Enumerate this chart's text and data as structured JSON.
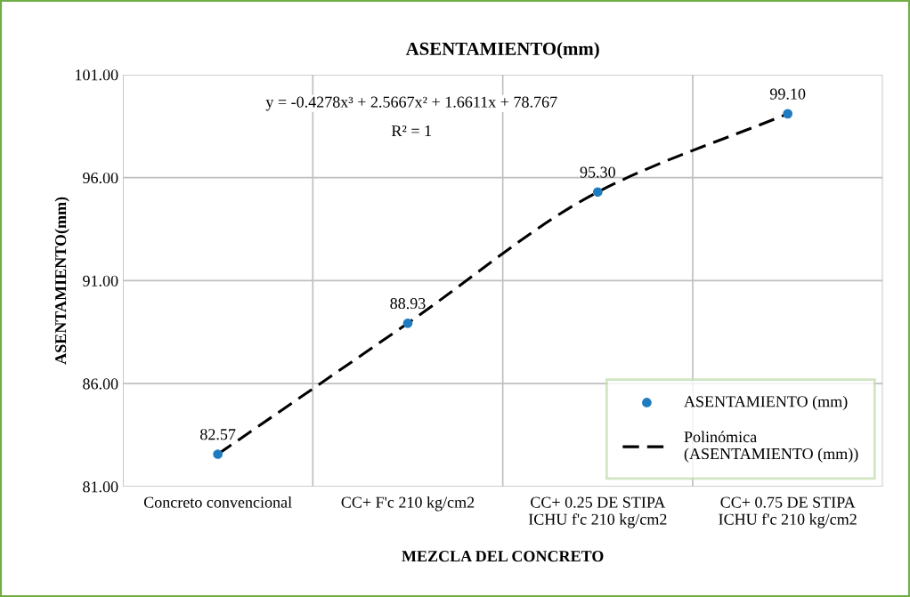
{
  "chart_data": {
    "type": "scatter",
    "title": "ASENTAMIENTO(mm)",
    "xlabel": "MEZCLA DEL CONCRETO",
    "ylabel": "ASENTAMIENTO(mm)",
    "categories": [
      "Concreto convencional",
      "CC+ F'c 210 kg/cm2",
      "CC+ 0.25 DE STIPA\nICHU f'c 210 kg/cm2",
      "CC+ 0.75 DE STIPA\nICHU f'c 210 kg/cm2"
    ],
    "series": [
      {
        "name": "ASENTAMIENTO (mm)",
        "color": "#1f7bc0",
        "marker": "circle",
        "values": [
          82.57,
          88.93,
          95.3,
          99.1
        ],
        "value_labels": [
          "82.57",
          "88.93",
          "95.30",
          "99.10"
        ]
      },
      {
        "name": "Polinómica\n(ASENTAMIENTO (mm))",
        "type": "line",
        "color": "#000000",
        "line_style": "dashed",
        "marker": "none",
        "values": [
          82.57,
          88.93,
          95.3,
          99.1
        ]
      }
    ],
    "ylim": [
      81,
      101
    ],
    "yticks": [
      {
        "value": 81,
        "label": "81.00"
      },
      {
        "value": 86,
        "label": "86.00"
      },
      {
        "value": 91,
        "label": "91.00"
      },
      {
        "value": 96,
        "label": "96.00"
      },
      {
        "value": 101,
        "label": "101.00"
      }
    ],
    "grid": true,
    "legend": "bottom right",
    "annotations": [
      "y = -0.4278x³ + 2.5667x² + 1.6611x + 78.767",
      "R² = 1"
    ]
  }
}
